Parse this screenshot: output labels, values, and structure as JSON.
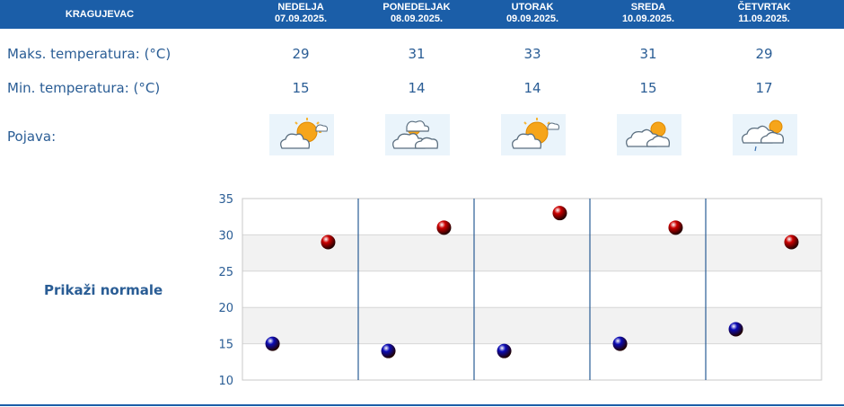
{
  "header": {
    "city": "KRAGUJEVAC"
  },
  "days": [
    {
      "name": "NEDELJA",
      "date": "07.09.2025.",
      "max": "29",
      "min": "15",
      "icon": "sun-behind-cloud-icon"
    },
    {
      "name": "PONEDELJAK",
      "date": "08.09.2025.",
      "max": "31",
      "min": "14",
      "icon": "cloud-with-small-sun-icon"
    },
    {
      "name": "UTORAK",
      "date": "09.09.2025.",
      "max": "33",
      "min": "14",
      "icon": "sun-behind-cloud-icon"
    },
    {
      "name": "SREDA",
      "date": "10.09.2025.",
      "max": "31",
      "min": "15",
      "icon": "cloudy-with-sun-icon"
    },
    {
      "name": "ČETVRTAK",
      "date": "11.09.2025.",
      "max": "29",
      "min": "17",
      "icon": "cloudy-with-drizzle-icon"
    }
  ],
  "labels": {
    "max": "Maks. temperatura: (°C)",
    "min": "Min. temperatura: (°C)",
    "phenomenon": "Pojava:",
    "normals": "Prikaži normale"
  },
  "colors": {
    "header": "#1b5ea8",
    "text": "#2a5d95",
    "max_marker": "#cc0000",
    "min_marker": "#0b0bb5"
  },
  "chart_data": {
    "type": "scatter",
    "categories": [
      "07.09.2025.",
      "08.09.2025.",
      "09.09.2025.",
      "10.09.2025.",
      "11.09.2025."
    ],
    "series": [
      {
        "values": [
          29,
          31,
          33,
          31,
          29
        ],
        "color": "#cc0000"
      },
      {
        "values": [
          15,
          14,
          14,
          15,
          17
        ],
        "color": "#0b0bb5"
      }
    ],
    "ylim": [
      10,
      35
    ],
    "yticks": [
      "10",
      "15",
      "20",
      "25",
      "30",
      "35"
    ],
    "grid": true,
    "xlabel": "",
    "ylabel": "",
    "title": ""
  }
}
